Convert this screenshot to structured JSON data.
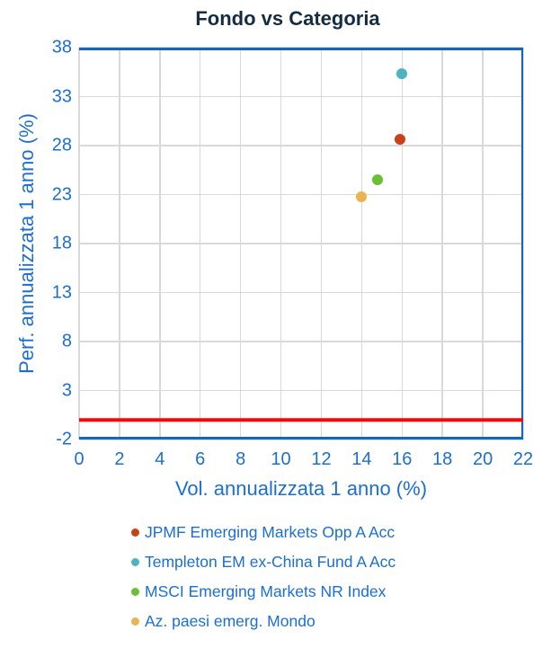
{
  "title": "Fondo vs Categoria",
  "colors": {
    "title_text": "#152c42",
    "axis_text": "#1b6fd2",
    "plot_border": "#1266c4",
    "gridline": "#d9d9d9",
    "reference_line": "#fb0505"
  },
  "chart_data": {
    "type": "scatter",
    "title": "Fondo vs Categoria",
    "xlabel": "Vol. annualizzata 1 anno (%)",
    "ylabel": "Perf. annualizzata 1 anno (%)",
    "xlim": [
      0,
      22
    ],
    "ylim": [
      -2,
      38
    ],
    "x_ticks": [
      0,
      2,
      4,
      6,
      8,
      10,
      12,
      14,
      16,
      18,
      20,
      22
    ],
    "y_ticks": [
      38,
      33,
      28,
      23,
      18,
      13,
      8,
      3,
      -2
    ],
    "grid": true,
    "legend_position": "bottom",
    "reference_line": {
      "y": 0,
      "color": "#fb0505"
    },
    "series": [
      {
        "name": "JPMF Emerging Markets Opp A Acc",
        "color": "#c8411a",
        "points": [
          [
            15.9,
            28.6
          ]
        ]
      },
      {
        "name": "Templeton EM ex-China Fund A Acc",
        "color": "#4db3c3",
        "points": [
          [
            16.0,
            35.3
          ]
        ]
      },
      {
        "name": "MSCI Emerging Markets NR Index",
        "color": "#69c035",
        "points": [
          [
            14.8,
            24.5
          ]
        ]
      },
      {
        "name": "Az. paesi emerg. Mondo",
        "color": "#e9b452",
        "points": [
          [
            14.0,
            22.8
          ]
        ]
      }
    ]
  }
}
